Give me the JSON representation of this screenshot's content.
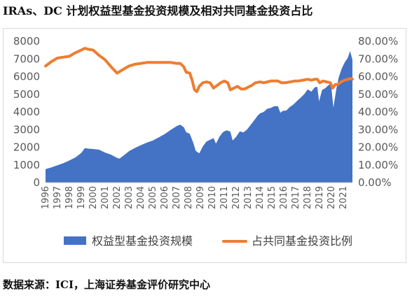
{
  "header": {
    "title": "IRAs、DC 计划权益型基金投资规模及相对共同基金投资占比",
    "source": "数据来源：ICI，上海证券基金评价研究中心"
  },
  "chart_data": {
    "type": "area+line",
    "categories": [
      "1996",
      "1997",
      "1998",
      "1999",
      "2000",
      "2001",
      "2002",
      "2003",
      "2004",
      "2005",
      "2006",
      "2007",
      "2008",
      "2009",
      "2010",
      "2011",
      "2012",
      "2013",
      "2014",
      "2015",
      "2016",
      "2017",
      "2018",
      "2019",
      "2020",
      "2021"
    ],
    "x_range": [
      1996,
      2021.75
    ],
    "series": [
      {
        "name": "权益型基金投资规模",
        "type": "area",
        "axis": "left",
        "color": "#4472C4",
        "points": [
          [
            1996,
            760
          ],
          [
            1996.5,
            860
          ],
          [
            1997,
            980
          ],
          [
            1997.5,
            1100
          ],
          [
            1998,
            1250
          ],
          [
            1998.5,
            1420
          ],
          [
            1999,
            1680
          ],
          [
            1999.3,
            1950
          ],
          [
            1999.6,
            1920
          ],
          [
            2000,
            1900
          ],
          [
            2000.5,
            1860
          ],
          [
            2001,
            1700
          ],
          [
            2001.5,
            1580
          ],
          [
            2002,
            1400
          ],
          [
            2002.2,
            1360
          ],
          [
            2002.6,
            1560
          ],
          [
            2003,
            1780
          ],
          [
            2003.5,
            1960
          ],
          [
            2004,
            2120
          ],
          [
            2004.5,
            2260
          ],
          [
            2005,
            2380
          ],
          [
            2005.5,
            2560
          ],
          [
            2006,
            2750
          ],
          [
            2006.5,
            2980
          ],
          [
            2007,
            3200
          ],
          [
            2007.3,
            3280
          ],
          [
            2007.6,
            3140
          ],
          [
            2007.8,
            2850
          ],
          [
            2008.1,
            2760
          ],
          [
            2008.4,
            2250
          ],
          [
            2008.6,
            1800
          ],
          [
            2008.9,
            1650
          ],
          [
            2009.2,
            2050
          ],
          [
            2009.5,
            2320
          ],
          [
            2009.8,
            2420
          ],
          [
            2010.1,
            2520
          ],
          [
            2010.3,
            2200
          ],
          [
            2010.6,
            2600
          ],
          [
            2010.9,
            2860
          ],
          [
            2011.2,
            2960
          ],
          [
            2011.5,
            2880
          ],
          [
            2011.7,
            2380
          ],
          [
            2012,
            2600
          ],
          [
            2012.3,
            2900
          ],
          [
            2012.6,
            2840
          ],
          [
            2012.9,
            3000
          ],
          [
            2013.2,
            3260
          ],
          [
            2013.5,
            3520
          ],
          [
            2013.8,
            3800
          ],
          [
            2014,
            3920
          ],
          [
            2014.3,
            4000
          ],
          [
            2014.6,
            4180
          ],
          [
            2014.9,
            4230
          ],
          [
            2015.2,
            4330
          ],
          [
            2015.5,
            4320
          ],
          [
            2015.7,
            3950
          ],
          [
            2015.9,
            4060
          ],
          [
            2016.2,
            4080
          ],
          [
            2016.5,
            4280
          ],
          [
            2016.8,
            4420
          ],
          [
            2017.1,
            4620
          ],
          [
            2017.4,
            4800
          ],
          [
            2017.7,
            5000
          ],
          [
            2018,
            5280
          ],
          [
            2018.3,
            5150
          ],
          [
            2018.6,
            5400
          ],
          [
            2018.8,
            5420
          ],
          [
            2018.95,
            4600
          ],
          [
            2019.2,
            5240
          ],
          [
            2019.5,
            5360
          ],
          [
            2019.7,
            5500
          ],
          [
            2019.95,
            5600
          ],
          [
            2020.15,
            4250
          ],
          [
            2020.4,
            5300
          ],
          [
            2020.6,
            5950
          ],
          [
            2020.85,
            6450
          ],
          [
            2021.1,
            6800
          ],
          [
            2021.35,
            7050
          ],
          [
            2021.55,
            7450
          ],
          [
            2021.75,
            6950
          ]
        ]
      },
      {
        "name": "占共同基金投资比例",
        "type": "line",
        "axis": "right",
        "color": "#ED7D31",
        "points": [
          [
            1996,
            0.66
          ],
          [
            1996.5,
            0.685
          ],
          [
            1997,
            0.705
          ],
          [
            1997.5,
            0.71
          ],
          [
            1998,
            0.715
          ],
          [
            1998.5,
            0.735
          ],
          [
            1999,
            0.75
          ],
          [
            1999.3,
            0.76
          ],
          [
            1999.6,
            0.755
          ],
          [
            2000,
            0.75
          ],
          [
            2000.5,
            0.72
          ],
          [
            2001,
            0.695
          ],
          [
            2001.5,
            0.655
          ],
          [
            2002,
            0.62
          ],
          [
            2002.5,
            0.64
          ],
          [
            2003,
            0.66
          ],
          [
            2003.5,
            0.67
          ],
          [
            2004,
            0.675
          ],
          [
            2004.5,
            0.68
          ],
          [
            2005,
            0.68
          ],
          [
            2005.5,
            0.68
          ],
          [
            2006,
            0.68
          ],
          [
            2006.5,
            0.68
          ],
          [
            2007,
            0.675
          ],
          [
            2007.3,
            0.675
          ],
          [
            2007.6,
            0.655
          ],
          [
            2007.8,
            0.625
          ],
          [
            2008.1,
            0.62
          ],
          [
            2008.3,
            0.58
          ],
          [
            2008.5,
            0.525
          ],
          [
            2008.7,
            0.515
          ],
          [
            2008.9,
            0.545
          ],
          [
            2009.2,
            0.565
          ],
          [
            2009.5,
            0.57
          ],
          [
            2009.8,
            0.565
          ],
          [
            2010.1,
            0.535
          ],
          [
            2010.4,
            0.55
          ],
          [
            2010.7,
            0.565
          ],
          [
            2011,
            0.575
          ],
          [
            2011.3,
            0.565
          ],
          [
            2011.5,
            0.525
          ],
          [
            2011.8,
            0.535
          ],
          [
            2012.1,
            0.545
          ],
          [
            2012.4,
            0.53
          ],
          [
            2012.7,
            0.53
          ],
          [
            2013,
            0.54
          ],
          [
            2013.3,
            0.55
          ],
          [
            2013.6,
            0.565
          ],
          [
            2014,
            0.57
          ],
          [
            2014.3,
            0.565
          ],
          [
            2014.6,
            0.57
          ],
          [
            2014.9,
            0.575
          ],
          [
            2015.2,
            0.575
          ],
          [
            2015.5,
            0.575
          ],
          [
            2015.8,
            0.565
          ],
          [
            2016.1,
            0.565
          ],
          [
            2016.5,
            0.57
          ],
          [
            2016.9,
            0.575
          ],
          [
            2017.2,
            0.575
          ],
          [
            2017.6,
            0.58
          ],
          [
            2018,
            0.585
          ],
          [
            2018.3,
            0.58
          ],
          [
            2018.6,
            0.585
          ],
          [
            2018.8,
            0.585
          ],
          [
            2019,
            0.565
          ],
          [
            2019.3,
            0.575
          ],
          [
            2019.6,
            0.57
          ],
          [
            2019.9,
            0.565
          ],
          [
            2020.1,
            0.535
          ],
          [
            2020.3,
            0.555
          ],
          [
            2020.5,
            0.555
          ],
          [
            2020.8,
            0.57
          ],
          [
            2021.1,
            0.58
          ],
          [
            2021.4,
            0.585
          ],
          [
            2021.6,
            0.59
          ],
          [
            2021.75,
            0.585
          ]
        ]
      }
    ],
    "y_left": {
      "min": 0,
      "max": 8000,
      "ticks": [
        "0",
        "1000",
        "2000",
        "3000",
        "4000",
        "5000",
        "6000",
        "7000",
        "8000"
      ]
    },
    "y_right": {
      "min": 0,
      "max": 0.8,
      "ticks": [
        "0.00%",
        "10.00%",
        "20.00%",
        "30.00%",
        "40.00%",
        "50.00%",
        "60.00%",
        "70.00%",
        "80.00%"
      ]
    },
    "grid": false,
    "legend_position": "bottom"
  }
}
